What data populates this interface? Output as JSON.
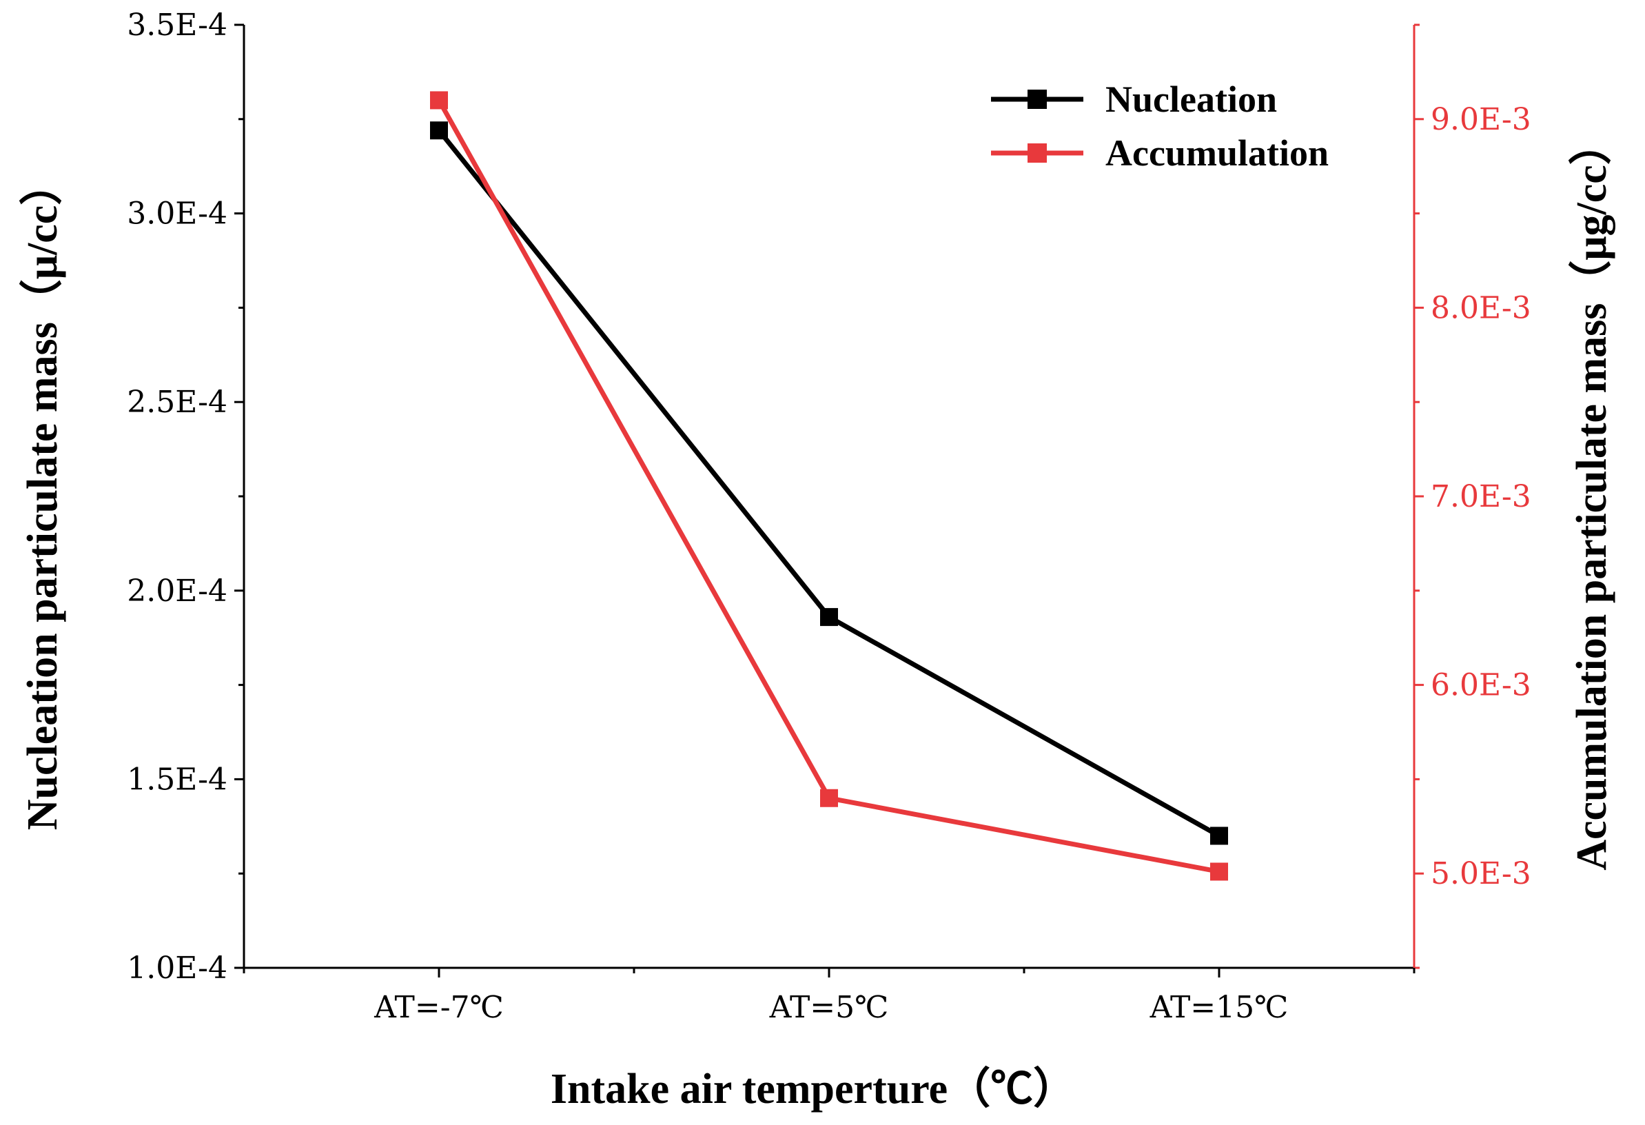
{
  "chart_data": {
    "type": "line",
    "categories": [
      "AT=-7℃",
      "AT=5℃",
      "AT=15℃"
    ],
    "xlabel": "Intake air temperture（℃）",
    "ylabel_left": "Nucleation particulate mass（μ/cc）",
    "ylabel_right": "Accumulation particulate mass（μg/cc）",
    "y_left": {
      "range": [
        0.0001,
        0.00035
      ],
      "ticks": [
        0.0001,
        0.00015,
        0.0002,
        0.00025,
        0.0003,
        0.00035
      ],
      "tick_labels": [
        "1.0E-4",
        "1.5E-4",
        "2.0E-4",
        "2.5E-4",
        "3.0E-4",
        "3.5E-4"
      ]
    },
    "y_right": {
      "range": [
        0.0045,
        0.0095
      ],
      "ticks": [
        0.005,
        0.006,
        0.007,
        0.008,
        0.009
      ],
      "tick_labels": [
        "5.0E-3",
        "6.0E-3",
        "7.0E-3",
        "8.0E-3",
        "9.0E-3"
      ]
    },
    "series": [
      {
        "name": "Nucleation",
        "axis": "left",
        "color": "#000000",
        "values": [
          0.000322,
          0.000193,
          0.000135
        ]
      },
      {
        "name": "Accumulation",
        "axis": "right",
        "color": "#e8393c",
        "values": [
          0.0091,
          0.0054,
          0.00501
        ]
      }
    ],
    "legend_position": "top-right",
    "grid": false
  }
}
